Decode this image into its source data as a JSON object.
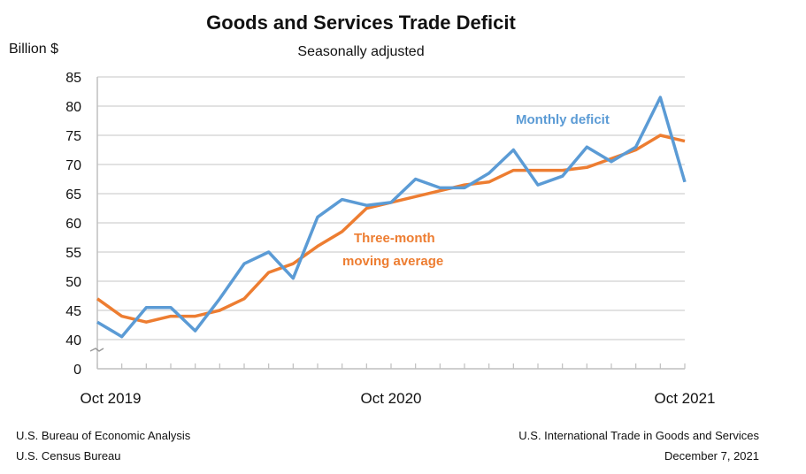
{
  "chart_data": {
    "type": "line",
    "title": "Goods and Services Trade Deficit",
    "subtitle": "Seasonally adjusted",
    "ylabel": "Billion $",
    "ylim": [
      40,
      85
    ],
    "y_ticks": [
      0,
      40,
      45,
      50,
      55,
      60,
      65,
      70,
      75,
      80,
      85
    ],
    "y_axis_break": "between 0 and 40",
    "x_tick_labels": [
      "Oct 2019",
      "Oct 2020",
      "Oct 2021"
    ],
    "x": [
      "2019-10",
      "2019-11",
      "2019-12",
      "2020-01",
      "2020-02",
      "2020-03",
      "2020-04",
      "2020-05",
      "2020-06",
      "2020-07",
      "2020-08",
      "2020-09",
      "2020-10",
      "2020-11",
      "2020-12",
      "2021-01",
      "2021-02",
      "2021-03",
      "2021-04",
      "2021-05",
      "2021-06",
      "2021-07",
      "2021-08",
      "2021-09",
      "2021-10"
    ],
    "grid": true,
    "series": [
      {
        "name": "Monthly deficit",
        "label": "Monthly deficit",
        "color": "#5b9bd5",
        "values": [
          43,
          40.5,
          45.5,
          45.5,
          41.5,
          47,
          53,
          55,
          50.5,
          61,
          64,
          63,
          63.5,
          67.5,
          66,
          66,
          68.5,
          72.5,
          66.5,
          68,
          73,
          70.5,
          73,
          81.5,
          67
        ]
      },
      {
        "name": "Three-month moving average",
        "label_line1": "Three-month",
        "label_line2": "moving average",
        "color": "#ed7d31",
        "values": [
          47,
          44,
          43,
          44,
          44,
          45,
          47,
          51.5,
          53,
          56,
          58.5,
          62.5,
          63.5,
          64.5,
          65.5,
          66.5,
          67,
          69,
          69,
          69,
          69.5,
          71,
          72.5,
          75,
          74
        ]
      }
    ]
  },
  "footer": {
    "left_line1": "U.S. Bureau of Economic Analysis",
    "left_line2": "U.S. Census Bureau",
    "right_line1": "U.S. International Trade in Goods and Services",
    "right_line2": "December 7, 2021"
  }
}
